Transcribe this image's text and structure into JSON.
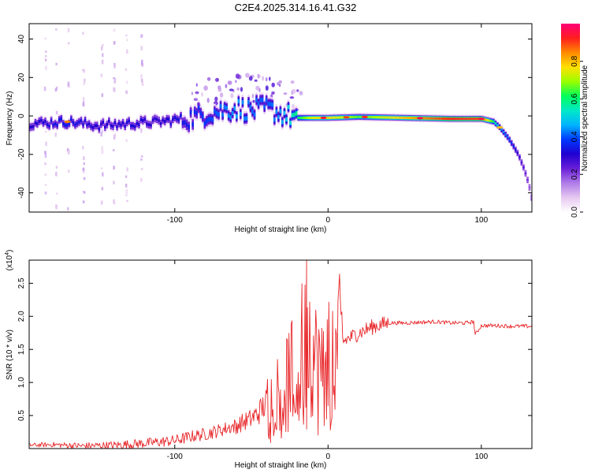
{
  "figure_title": "C2E4.2025.314.16.41.G32",
  "colors": {
    "snr_line": "#e8272a",
    "spectral_ramp": [
      "#ffffff",
      "#e6c8f0",
      "#b07ce8",
      "#6a1fd8",
      "#2000d0",
      "#0038ff",
      "#00b4ff",
      "#00e8c8",
      "#00ff5a",
      "#9aff00",
      "#ffe000",
      "#ff8a00",
      "#ff1e1e",
      "#ff0078"
    ]
  },
  "chart_data": [
    {
      "type": "heatmap",
      "title": "",
      "xlabel": "Height of straight line (km)",
      "ylabel": "Frequency (Hz)",
      "xlim": [
        -195,
        133
      ],
      "ylim": [
        -50,
        48
      ],
      "xticks": [
        -100,
        0,
        100
      ],
      "yticks": [
        -40,
        -20,
        0,
        20,
        40
      ],
      "colorbar": {
        "label": "Normalized spectral amplitude",
        "ticks": [
          "0.0",
          "0.2",
          "0.4",
          "0.6",
          "0.8"
        ],
        "range": [
          0,
          1
        ]
      },
      "ridge": {
        "x": [
          -195,
          -170,
          -150,
          -130,
          -110,
          -90,
          -75,
          -60,
          -50,
          -40,
          -30,
          -20,
          -10,
          0,
          20,
          50,
          80,
          100,
          108,
          112,
          118,
          124,
          128,
          131,
          133
        ],
        "freq": [
          -4,
          -3,
          -5,
          -4,
          -3,
          -1,
          2,
          4,
          3,
          4,
          1,
          -1,
          -1,
          -1,
          -0.5,
          -1,
          -1.5,
          -1.5,
          -3,
          -6,
          -12,
          -20,
          -28,
          -36,
          -44
        ],
        "amplitude": [
          0.3,
          0.35,
          0.3,
          0.32,
          0.3,
          0.35,
          0.4,
          0.45,
          0.42,
          0.4,
          0.45,
          0.6,
          0.75,
          0.78,
          0.65,
          0.8,
          0.92,
          0.9,
          0.6,
          0.45,
          0.4,
          0.3,
          0.25,
          0.2,
          0.15
        ]
      }
    },
    {
      "type": "line",
      "title": "",
      "xlabel": "Height of straight line (km)",
      "ylabel": "SNR (10 * v/v)",
      "y_multiplier": "(x10",
      "y_multiplier_exp": "4",
      "y_multiplier_close": ")",
      "xlim": [
        -195,
        133
      ],
      "ylim": [
        0,
        2.85
      ],
      "xticks": [
        -100,
        0,
        100
      ],
      "yticks": [
        0.5,
        1.0,
        1.5,
        2.0,
        2.5
      ],
      "ytick_labels": [
        "0.5",
        "1.0",
        "1.5",
        "2.0",
        "2.5"
      ],
      "series": [
        {
          "name": "SNR",
          "x": [
            -195,
            -180,
            -160,
            -140,
            -120,
            -100,
            -90,
            -80,
            -70,
            -60,
            -50,
            -45,
            -40,
            -35,
            -30,
            -25,
            -20,
            -15,
            -12,
            -10,
            -5,
            0,
            5,
            10,
            20,
            30,
            40,
            50,
            60,
            70,
            80,
            90,
            95,
            96,
            100,
            110,
            120,
            133
          ],
          "y": [
            0.05,
            0.06,
            0.04,
            0.05,
            0.08,
            0.12,
            0.18,
            0.22,
            0.28,
            0.35,
            0.45,
            0.55,
            0.7,
            0.85,
            0.95,
            1.1,
            1.3,
            1.6,
            1.75,
            1.4,
            1.3,
            1.35,
            1.5,
            1.62,
            1.75,
            1.85,
            1.9,
            1.9,
            1.91,
            1.92,
            1.9,
            1.9,
            1.92,
            1.72,
            1.86,
            1.86,
            1.85,
            1.85
          ]
        }
      ],
      "peaks": [
        {
          "x": -14,
          "y": 2.84
        },
        {
          "x": -17,
          "y": 2.1
        }
      ]
    }
  ]
}
